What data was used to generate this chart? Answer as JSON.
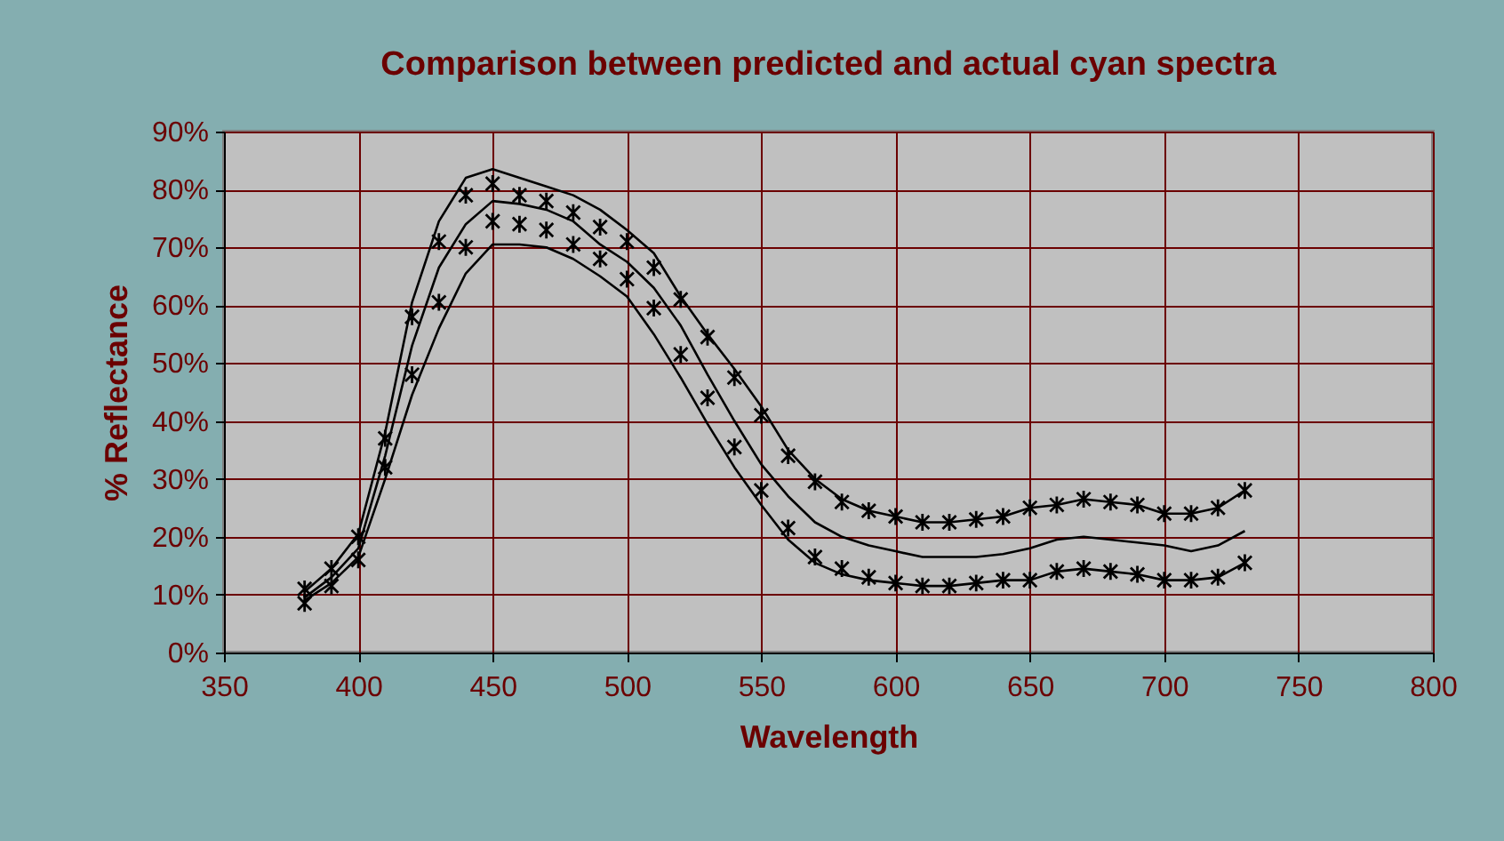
{
  "chart_data": {
    "type": "line",
    "title": "Comparison between predicted and actual cyan spectra",
    "xlabel": "Wavelength",
    "ylabel": "% Reflectance",
    "x": [
      380,
      390,
      400,
      410,
      420,
      430,
      440,
      450,
      460,
      470,
      480,
      490,
      500,
      510,
      520,
      530,
      540,
      550,
      560,
      570,
      580,
      590,
      600,
      610,
      620,
      630,
      640,
      650,
      660,
      670,
      680,
      690,
      700,
      710,
      720,
      730
    ],
    "series": [
      {
        "marker": "none",
        "color": "#000000",
        "values": [
          10.5,
          14.5,
          20.5,
          38,
          60.5,
          74.5,
          82,
          83.5,
          82,
          80.5,
          79,
          76.5,
          73,
          69,
          61.5,
          55,
          49,
          42.5,
          35,
          30,
          26.5,
          24.5,
          23.5,
          22.5,
          22.5,
          23,
          23.5,
          25,
          25.5,
          26.5,
          26,
          25.5,
          24,
          24,
          25,
          28
        ]
      },
      {
        "marker": "none",
        "color": "#000000",
        "values": [
          9.5,
          13,
          18,
          34,
          53,
          66.5,
          74,
          78,
          77.5,
          76.5,
          74.5,
          70.5,
          67.5,
          63,
          56.5,
          48,
          40,
          32.5,
          27,
          22.5,
          20,
          18.5,
          17.5,
          16.5,
          16.5,
          16.5,
          17,
          18,
          19.5,
          20,
          19.5,
          19,
          18.5,
          17.5,
          18.5,
          21
        ]
      },
      {
        "marker": "none",
        "color": "#000000",
        "values": [
          9,
          12,
          16.5,
          30,
          44.5,
          56,
          65.5,
          70.5,
          70.5,
          70,
          68,
          65,
          61.5,
          55,
          47.5,
          39.5,
          32,
          25.5,
          19.5,
          15.5,
          13.5,
          12.5,
          12,
          11.5,
          11.5,
          12,
          12.5,
          12.5,
          14,
          14.5,
          14,
          13.5,
          12.5,
          12.5,
          13,
          15.5
        ]
      },
      {
        "type": "scatter",
        "marker": "cross",
        "color": "#000000",
        "values": [
          11,
          14.5,
          20,
          37,
          58,
          71,
          79,
          81,
          79,
          78,
          76,
          73.5,
          71,
          66.5,
          61,
          54.5,
          47.5,
          41,
          34,
          29.5,
          26,
          24.5,
          23.5,
          22.5,
          22.5,
          23,
          23.5,
          25,
          25.5,
          26.5,
          26,
          25.5,
          24,
          24,
          25,
          28
        ]
      },
      {
        "type": "scatter",
        "marker": "cross",
        "color": "#000000",
        "values": [
          8.5,
          11.5,
          16,
          32,
          48,
          60.5,
          70,
          74.5,
          74,
          73,
          70.5,
          68,
          64.5,
          59.5,
          51.5,
          44,
          35.5,
          28,
          21.5,
          16.5,
          14.5,
          13,
          12,
          11.5,
          11.5,
          12,
          12.5,
          12.5,
          14,
          14.5,
          14,
          13.5,
          12.5,
          12.5,
          13,
          15.5
        ]
      }
    ],
    "xlim": [
      350,
      800
    ],
    "xticks": [
      350,
      400,
      450,
      500,
      550,
      600,
      650,
      700,
      750,
      800
    ],
    "ylim": [
      0,
      90
    ],
    "yticks": [
      {
        "value": 0,
        "label": "0%"
      },
      {
        "value": 10,
        "label": "10%"
      },
      {
        "value": 20,
        "label": "20%"
      },
      {
        "value": 30,
        "label": "30%"
      },
      {
        "value": 40,
        "label": "40%"
      },
      {
        "value": 50,
        "label": "50%"
      },
      {
        "value": 60,
        "label": "60%"
      },
      {
        "value": 70,
        "label": "70%"
      },
      {
        "value": 80,
        "label": "80%"
      },
      {
        "value": 90,
        "label": "90%"
      }
    ],
    "grid": true
  }
}
